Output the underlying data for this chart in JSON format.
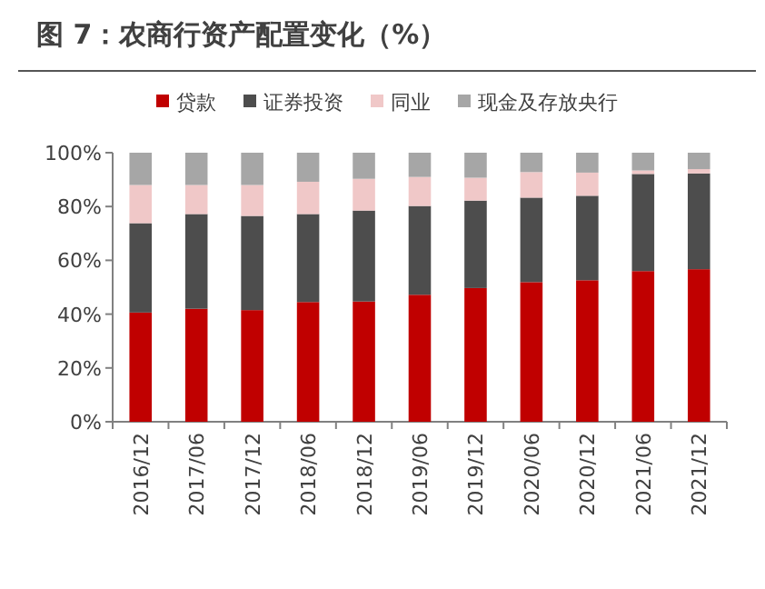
{
  "chart_data": {
    "type": "bar",
    "title": "图 7：农商行资产配置变化（%）",
    "stacked": true,
    "legend": "top",
    "grid": false,
    "categories": [
      "2016/12",
      "2017/06",
      "2017/12",
      "2018/06",
      "2018/12",
      "2019/06",
      "2019/12",
      "2020/06",
      "2020/12",
      "2021/06",
      "2021/12"
    ],
    "series": [
      {
        "name": "贷款",
        "color": "#c00000",
        "values": [
          40.6,
          42,
          41.5,
          44.5,
          44.7,
          47.2,
          49.7,
          51.9,
          52.6,
          56,
          56.7
        ]
      },
      {
        "name": "证券投资",
        "color": "#4d4d4d",
        "values": [
          33.2,
          35.2,
          35,
          32.7,
          33.8,
          33,
          32.5,
          31.4,
          31.4,
          36.1,
          35.6
        ]
      },
      {
        "name": "同业",
        "color": "#f0c8c8",
        "values": [
          14.2,
          10.8,
          11.5,
          12,
          11.8,
          10.8,
          8.5,
          9.5,
          8.6,
          1.3,
          1.6
        ]
      },
      {
        "name": "现金及存放央行",
        "color": "#a6a6a6",
        "values": [
          12,
          12,
          12,
          10.8,
          9.7,
          9,
          9.3,
          7.2,
          7.4,
          6.6,
          6.1
        ]
      }
    ],
    "ylim": [
      0,
      100
    ],
    "yticks": [
      {
        "value": 0,
        "label": "0%"
      },
      {
        "value": 20,
        "label": "20%"
      },
      {
        "value": 40,
        "label": "40%"
      },
      {
        "value": 60,
        "label": "60%"
      },
      {
        "value": 80,
        "label": "80%"
      },
      {
        "value": 100,
        "label": "100%"
      }
    ]
  }
}
